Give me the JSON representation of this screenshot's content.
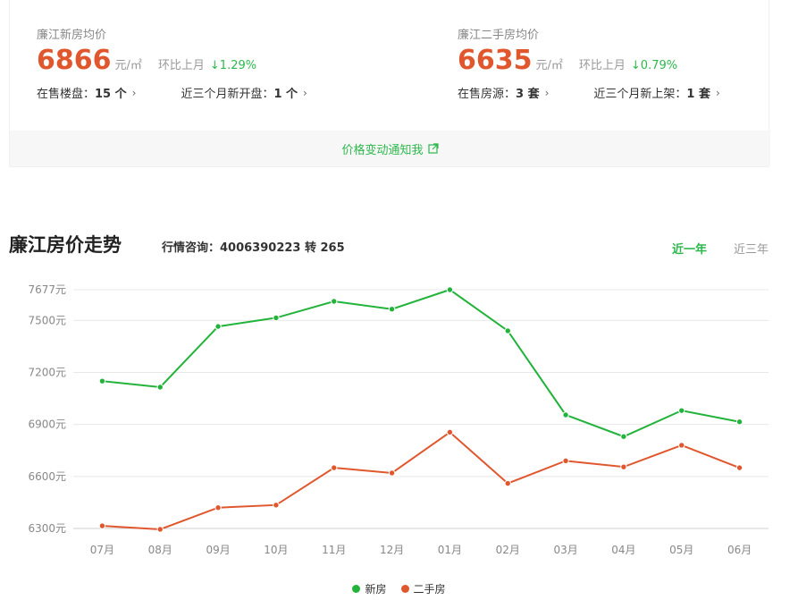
{
  "new_house": {
    "label": "廉江新房均价",
    "price": "6866",
    "unit": "元/㎡",
    "mom_label": "环比上月",
    "mom_value": "↓1.29%",
    "stat1_label": "在售楼盘：",
    "stat1_value": "15 个",
    "stat2_label": "近三个月新开盘：",
    "stat2_value": "1 个"
  },
  "second_house": {
    "label": "廉江二手房均价",
    "price": "6635",
    "unit": "元/㎡",
    "mom_label": "环比上月",
    "mom_value": "↓0.79%",
    "stat1_label": "在售房源：",
    "stat1_value": "3 套",
    "stat2_label": "近三个月新上架：",
    "stat2_value": "1 套"
  },
  "notify_label": "价格变动通知我",
  "trend": {
    "title": "廉江房价走势",
    "hotline": "行情咨询：4006390223 转 265",
    "tabs": [
      "近一年",
      "近三年"
    ],
    "active_tab": 0
  },
  "colors": {
    "accent_green": "#2db84d",
    "price_red": "#e0572e"
  },
  "chart_data": {
    "type": "line",
    "categories": [
      "07月",
      "08月",
      "09月",
      "10月",
      "11月",
      "12月",
      "01月",
      "02月",
      "03月",
      "04月",
      "05月",
      "06月"
    ],
    "y_ticks": [
      6300,
      6600,
      6900,
      7200,
      7500,
      7677
    ],
    "y_tick_suffix": "元",
    "ylim": [
      6300,
      7677
    ],
    "grid": true,
    "legend_position": "bottom-center",
    "series": [
      {
        "name": "新房",
        "color": "#22b33a",
        "values": [
          7150,
          7115,
          7465,
          7515,
          7610,
          7565,
          7677,
          7440,
          6955,
          6830,
          6980,
          6915
        ]
      },
      {
        "name": "二手房",
        "color": "#e0572e",
        "values": [
          6315,
          6295,
          6420,
          6435,
          6650,
          6620,
          6855,
          6560,
          6690,
          6655,
          6780,
          6650
        ]
      }
    ]
  }
}
